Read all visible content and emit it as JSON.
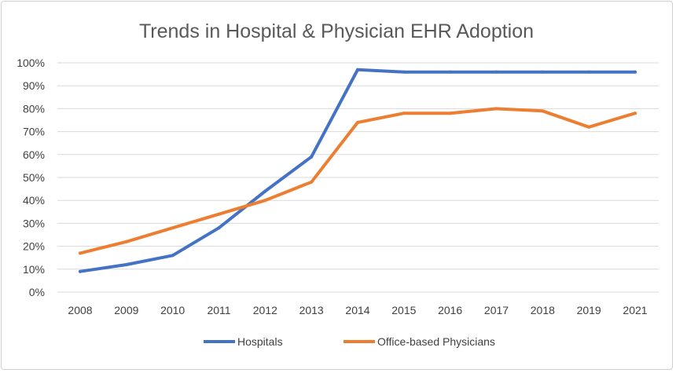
{
  "chart_data": {
    "type": "line",
    "title": "Trends in Hospital & Physician EHR Adoption",
    "xlabel": "",
    "ylabel": "",
    "x": [
      "2008",
      "2009",
      "2010",
      "2011",
      "2012",
      "2013",
      "2014",
      "2015",
      "2016",
      "2017",
      "2018",
      "2019",
      "2021"
    ],
    "ylim": [
      0,
      100
    ],
    "yticks": [
      "0%",
      "10%",
      "20%",
      "30%",
      "40%",
      "50%",
      "60%",
      "70%",
      "80%",
      "90%",
      "100%"
    ],
    "grid": true,
    "legend_position": "bottom",
    "series": [
      {
        "name": "Hospitals",
        "color": "#4472C4",
        "values": [
          9,
          12,
          16,
          28,
          44,
          59,
          97,
          96,
          96,
          96,
          96,
          96,
          96
        ]
      },
      {
        "name": "Office-based Physicians",
        "color": "#ED7D31",
        "values": [
          17,
          22,
          28,
          34,
          40,
          48,
          74,
          78,
          78,
          80,
          79,
          72,
          78
        ]
      }
    ]
  }
}
